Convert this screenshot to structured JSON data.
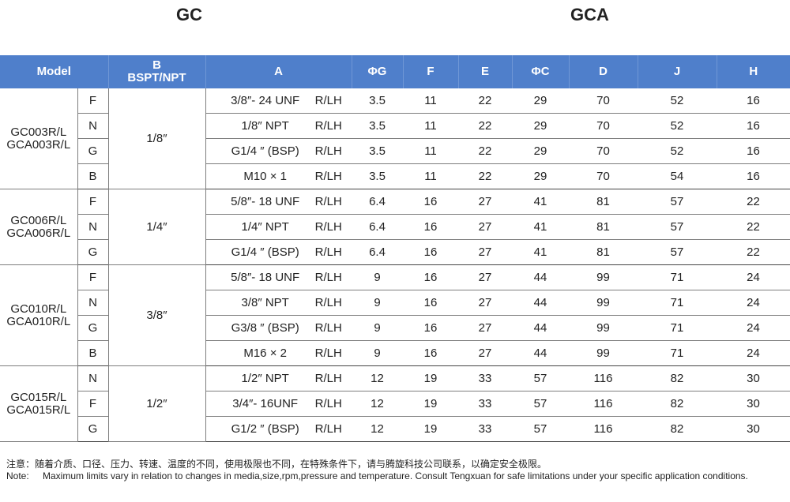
{
  "titles": {
    "left": "GC",
    "right": "GCA"
  },
  "headers": {
    "model": "Model",
    "b_line1": "B",
    "b_line2": "BSPT/NPT",
    "a": "A",
    "g": "ΦG",
    "f": "F",
    "e": "E",
    "c": "ΦC",
    "d": "D",
    "j": "J",
    "h": "H"
  },
  "groups": [
    {
      "model1": "GC003R/L",
      "model2": "GCA003R/L",
      "b": "1/8″",
      "rows": [
        {
          "code": "F",
          "thread": "3/8″- 24 UNF",
          "hand": "R/LH",
          "g": "3.5",
          "f": "11",
          "e": "22",
          "c": "29",
          "d": "70",
          "j": "52",
          "h": "16"
        },
        {
          "code": "N",
          "thread": "1/8″ NPT",
          "hand": "R/LH",
          "g": "3.5",
          "f": "11",
          "e": "22",
          "c": "29",
          "d": "70",
          "j": "52",
          "h": "16"
        },
        {
          "code": "G",
          "thread": "G1/4 ″ (BSP)",
          "hand": "R/LH",
          "g": "3.5",
          "f": "11",
          "e": "22",
          "c": "29",
          "d": "70",
          "j": "52",
          "h": "16"
        },
        {
          "code": "B",
          "thread": "M10 × 1",
          "hand": "R/LH",
          "g": "3.5",
          "f": "11",
          "e": "22",
          "c": "29",
          "d": "70",
          "j": "54",
          "h": "16"
        }
      ]
    },
    {
      "model1": "GC006R/L",
      "model2": "GCA006R/L",
      "b": "1/4″",
      "rows": [
        {
          "code": "F",
          "thread": "5/8″- 18 UNF",
          "hand": "R/LH",
          "g": "6.4",
          "f": "16",
          "e": "27",
          "c": "41",
          "d": "81",
          "j": "57",
          "h": "22"
        },
        {
          "code": "N",
          "thread": "1/4″ NPT",
          "hand": "R/LH",
          "g": "6.4",
          "f": "16",
          "e": "27",
          "c": "41",
          "d": "81",
          "j": "57",
          "h": "22"
        },
        {
          "code": "G",
          "thread": "G1/4 ″ (BSP)",
          "hand": "R/LH",
          "g": "6.4",
          "f": "16",
          "e": "27",
          "c": "41",
          "d": "81",
          "j": "57",
          "h": "22"
        }
      ]
    },
    {
      "model1": "GC010R/L",
      "model2": "GCA010R/L",
      "b": "3/8″",
      "rows": [
        {
          "code": "F",
          "thread": "5/8″- 18 UNF",
          "hand": "R/LH",
          "g": "9",
          "f": "16",
          "e": "27",
          "c": "44",
          "d": "99",
          "j": "71",
          "h": "24"
        },
        {
          "code": "N",
          "thread": "3/8″ NPT",
          "hand": "R/LH",
          "g": "9",
          "f": "16",
          "e": "27",
          "c": "44",
          "d": "99",
          "j": "71",
          "h": "24"
        },
        {
          "code": "G",
          "thread": "G3/8 ″ (BSP)",
          "hand": "R/LH",
          "g": "9",
          "f": "16",
          "e": "27",
          "c": "44",
          "d": "99",
          "j": "71",
          "h": "24"
        },
        {
          "code": "B",
          "thread": "M16 × 2",
          "hand": "R/LH",
          "g": "9",
          "f": "16",
          "e": "27",
          "c": "44",
          "d": "99",
          "j": "71",
          "h": "24"
        }
      ]
    },
    {
      "model1": "GC015R/L",
      "model2": "GCA015R/L",
      "b": "1/2″",
      "rows": [
        {
          "code": "N",
          "thread": "1/2″ NPT",
          "hand": "R/LH",
          "g": "12",
          "f": "19",
          "e": "33",
          "c": "57",
          "d": "116",
          "j": "82",
          "h": "30"
        },
        {
          "code": "F",
          "thread": "3/4″- 16UNF",
          "hand": "R/LH",
          "g": "12",
          "f": "19",
          "e": "33",
          "c": "57",
          "d": "116",
          "j": "82",
          "h": "30"
        },
        {
          "code": "G",
          "thread": "G1/2 ″ (BSP)",
          "hand": "R/LH",
          "g": "12",
          "f": "19",
          "e": "33",
          "c": "57",
          "d": "116",
          "j": "82",
          "h": "30"
        }
      ]
    }
  ],
  "notes": {
    "cn_label": "注意：",
    "cn_text": "随着介质、口径、压力、转速、温度的不同，使用极限也不同，在特殊条件下，请与腾旋科技公司联系，以确定安全极限。",
    "en_label": "Note:",
    "en_text": "Maximum limits vary in relation to changes in media,size,rpm,pressure and temperature. Consult  Tengxuan for safe limitations under your specific application conditions."
  },
  "colors": {
    "header_bg": "#4f7fcb",
    "header_text": "#ffffff"
  }
}
